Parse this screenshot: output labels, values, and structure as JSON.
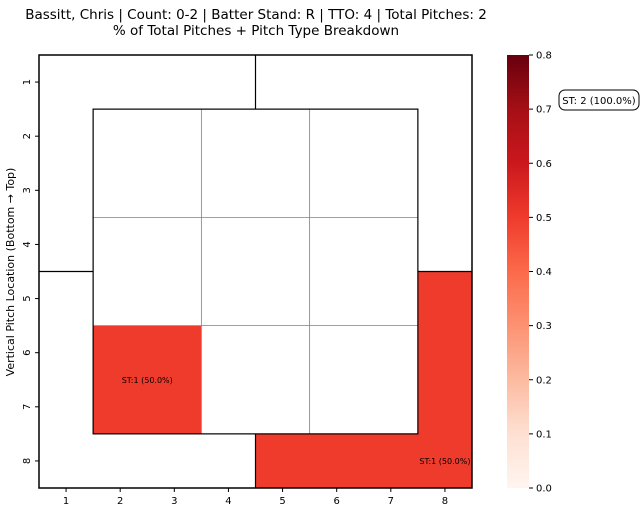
{
  "chart_data": {
    "type": "heatmap",
    "title_line1": "Bassitt, Chris | Count: 0-2 | Batter Stand: R | TTO: 4 | Total Pitches: 2",
    "title_line2": "% of Total Pitches + Pitch Type Breakdown",
    "ylabel": "Vertical Pitch Location (Bottom → Top)",
    "xlabel": "",
    "x_ticks": [
      "1",
      "2",
      "3",
      "4",
      "5",
      "6",
      "7",
      "8"
    ],
    "y_ticks": [
      "1",
      "2",
      "3",
      "4",
      "5",
      "6",
      "7",
      "8"
    ],
    "colorbar": {
      "min": 0.0,
      "max": 0.8,
      "ticks": [
        "0.0",
        "0.1",
        "0.2",
        "0.3",
        "0.4",
        "0.5",
        "0.6",
        "0.7",
        "0.8"
      ]
    },
    "cells": [
      {
        "region": "inner-row3-col1",
        "value": 0.5,
        "label": "ST:1 (50.0%)"
      },
      {
        "region": "outer-bottom-right",
        "value": 0.5,
        "label": "ST:1 (50.0%)"
      }
    ],
    "legend": {
      "text": "ST: 2 (100.0%)",
      "placement": "right"
    }
  },
  "colors": {
    "max": "#67000d",
    "min": "#fff5f0",
    "grid_inner": "#808080",
    "frame": "#000000"
  }
}
